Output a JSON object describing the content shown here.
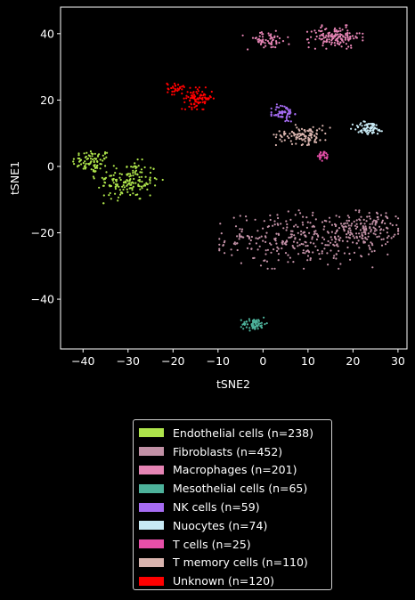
{
  "chart_data": {
    "type": "scatter",
    "xlabel": "tSNE2",
    "ylabel": "tSNE1",
    "xlim": [
      -45,
      32
    ],
    "ylim": [
      -55,
      48
    ],
    "xticks": [
      -40,
      -30,
      -20,
      -10,
      0,
      10,
      20,
      30
    ],
    "yticks": [
      -40,
      -20,
      0,
      20,
      40
    ],
    "grid": false,
    "legend_position": "below",
    "series": [
      {
        "name": "Endothelial cells (n=238)",
        "color": "#aee44b",
        "clusters": [
          {
            "x": -38,
            "y": 1.5,
            "sx": 2.2,
            "sy": 1.8,
            "n": 80
          },
          {
            "x": -30,
            "y": -4.5,
            "sx": 3.5,
            "sy": 3.0,
            "n": 158
          }
        ]
      },
      {
        "name": "Fibroblasts (n=452)",
        "color": "#c291a6",
        "clusters": [
          {
            "x": 9,
            "y": -22,
            "sx": 8.5,
            "sy": 4.0,
            "n": 300
          },
          {
            "x": 23,
            "y": -19,
            "sx": 3.2,
            "sy": 2.5,
            "n": 140
          },
          {
            "x": -5,
            "y": -21.5,
            "sx": 1.5,
            "sy": 0.8,
            "n": 12
          }
        ]
      },
      {
        "name": "Macrophages (n=201)",
        "color": "#e584b4",
        "clusters": [
          {
            "x": 1,
            "y": 38,
            "sx": 2.5,
            "sy": 1.3,
            "n": 60
          },
          {
            "x": 16,
            "y": 39,
            "sx": 2.8,
            "sy": 1.6,
            "n": 141
          }
        ]
      },
      {
        "name": "Mesothelial cells (n=65)",
        "color": "#4db29b",
        "clusters": [
          {
            "x": -2,
            "y": -47.5,
            "sx": 1.3,
            "sy": 0.9,
            "n": 65
          }
        ]
      },
      {
        "name": "NK cells (n=59)",
        "color": "#a66cf2",
        "clusters": [
          {
            "x": 4.5,
            "y": 16,
            "sx": 1.2,
            "sy": 1.3,
            "n": 59
          }
        ]
      },
      {
        "name": "Nuocytes (n=74)",
        "color": "#c8eaf5",
        "clusters": [
          {
            "x": 23.5,
            "y": 11.5,
            "sx": 1.8,
            "sy": 1.0,
            "n": 74
          }
        ]
      },
      {
        "name": "T cells (n=25)",
        "color": "#e74fa9",
        "clusters": [
          {
            "x": 13.5,
            "y": 3.2,
            "sx": 0.6,
            "sy": 0.7,
            "n": 25
          }
        ]
      },
      {
        "name": "T memory cells (n=110)",
        "color": "#d9b4ae",
        "clusters": [
          {
            "x": 9,
            "y": 9.5,
            "sx": 3.0,
            "sy": 1.4,
            "n": 110
          }
        ]
      },
      {
        "name": "Unknown (n=120)",
        "color": "#ff0000",
        "clusters": [
          {
            "x": -19.5,
            "y": 23.5,
            "sx": 0.9,
            "sy": 0.9,
            "n": 30
          },
          {
            "x": -14.5,
            "y": 20.5,
            "sx": 1.6,
            "sy": 1.5,
            "n": 90
          }
        ]
      }
    ]
  }
}
